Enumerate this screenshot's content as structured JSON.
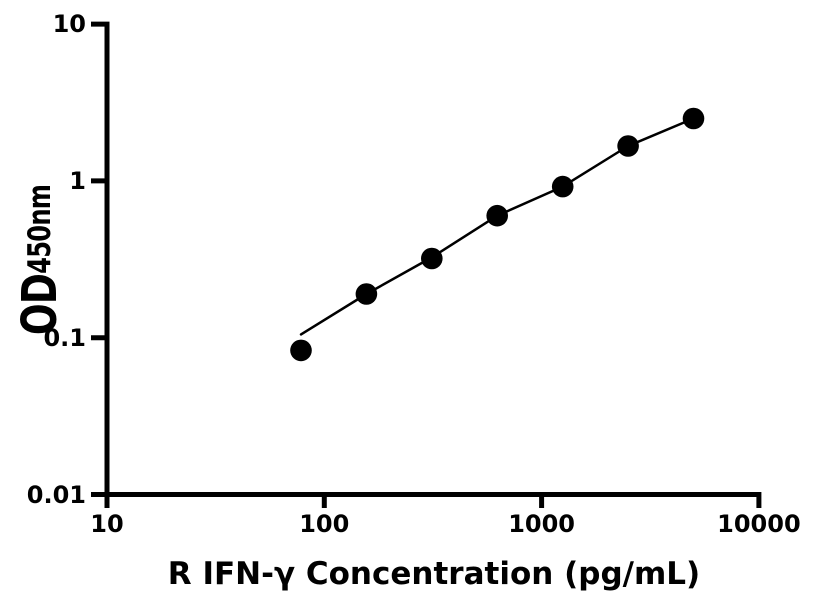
{
  "chart_data": {
    "type": "scatter",
    "title": "",
    "xlabel": "R IFN-γ Concentration (pg/mL)",
    "ylabel_main": "OD",
    "ylabel_sub": "450nm",
    "x_scale": "log",
    "y_scale": "log",
    "xlim": [
      10,
      10000
    ],
    "ylim": [
      0.01,
      10
    ],
    "grid": false,
    "legend": "none",
    "background_color": "#ffffff",
    "accent_color": "#000000",
    "x_ticks": [
      {
        "value": 10,
        "label": "10"
      },
      {
        "value": 100,
        "label": "100"
      },
      {
        "value": 1000,
        "label": "1000"
      },
      {
        "value": 10000,
        "label": "10000"
      }
    ],
    "y_ticks": [
      {
        "value": 10,
        "label": "10"
      },
      {
        "value": 1,
        "label": "1"
      },
      {
        "value": 0.1,
        "label": "0.1"
      },
      {
        "value": 0.01,
        "label": "0.01"
      }
    ],
    "series": [
      {
        "name": "standard-curve-points",
        "marker": "filled-circle",
        "marker_color": "#000000",
        "points": [
          {
            "x": 78.125,
            "y": 0.083
          },
          {
            "x": 156.25,
            "y": 0.19
          },
          {
            "x": 312.5,
            "y": 0.32
          },
          {
            "x": 625,
            "y": 0.6
          },
          {
            "x": 1250,
            "y": 0.92
          },
          {
            "x": 2500,
            "y": 1.67
          },
          {
            "x": 5000,
            "y": 2.5
          }
        ]
      }
    ],
    "fit_curve": {
      "name": "fitted-line",
      "color": "#000000",
      "points": [
        {
          "x": 78.125,
          "y": 0.105
        },
        {
          "x": 156.25,
          "y": 0.19
        },
        {
          "x": 312.5,
          "y": 0.325
        },
        {
          "x": 625,
          "y": 0.6
        },
        {
          "x": 1250,
          "y": 0.92
        },
        {
          "x": 2500,
          "y": 1.67
        },
        {
          "x": 5000,
          "y": 2.5
        }
      ]
    }
  }
}
